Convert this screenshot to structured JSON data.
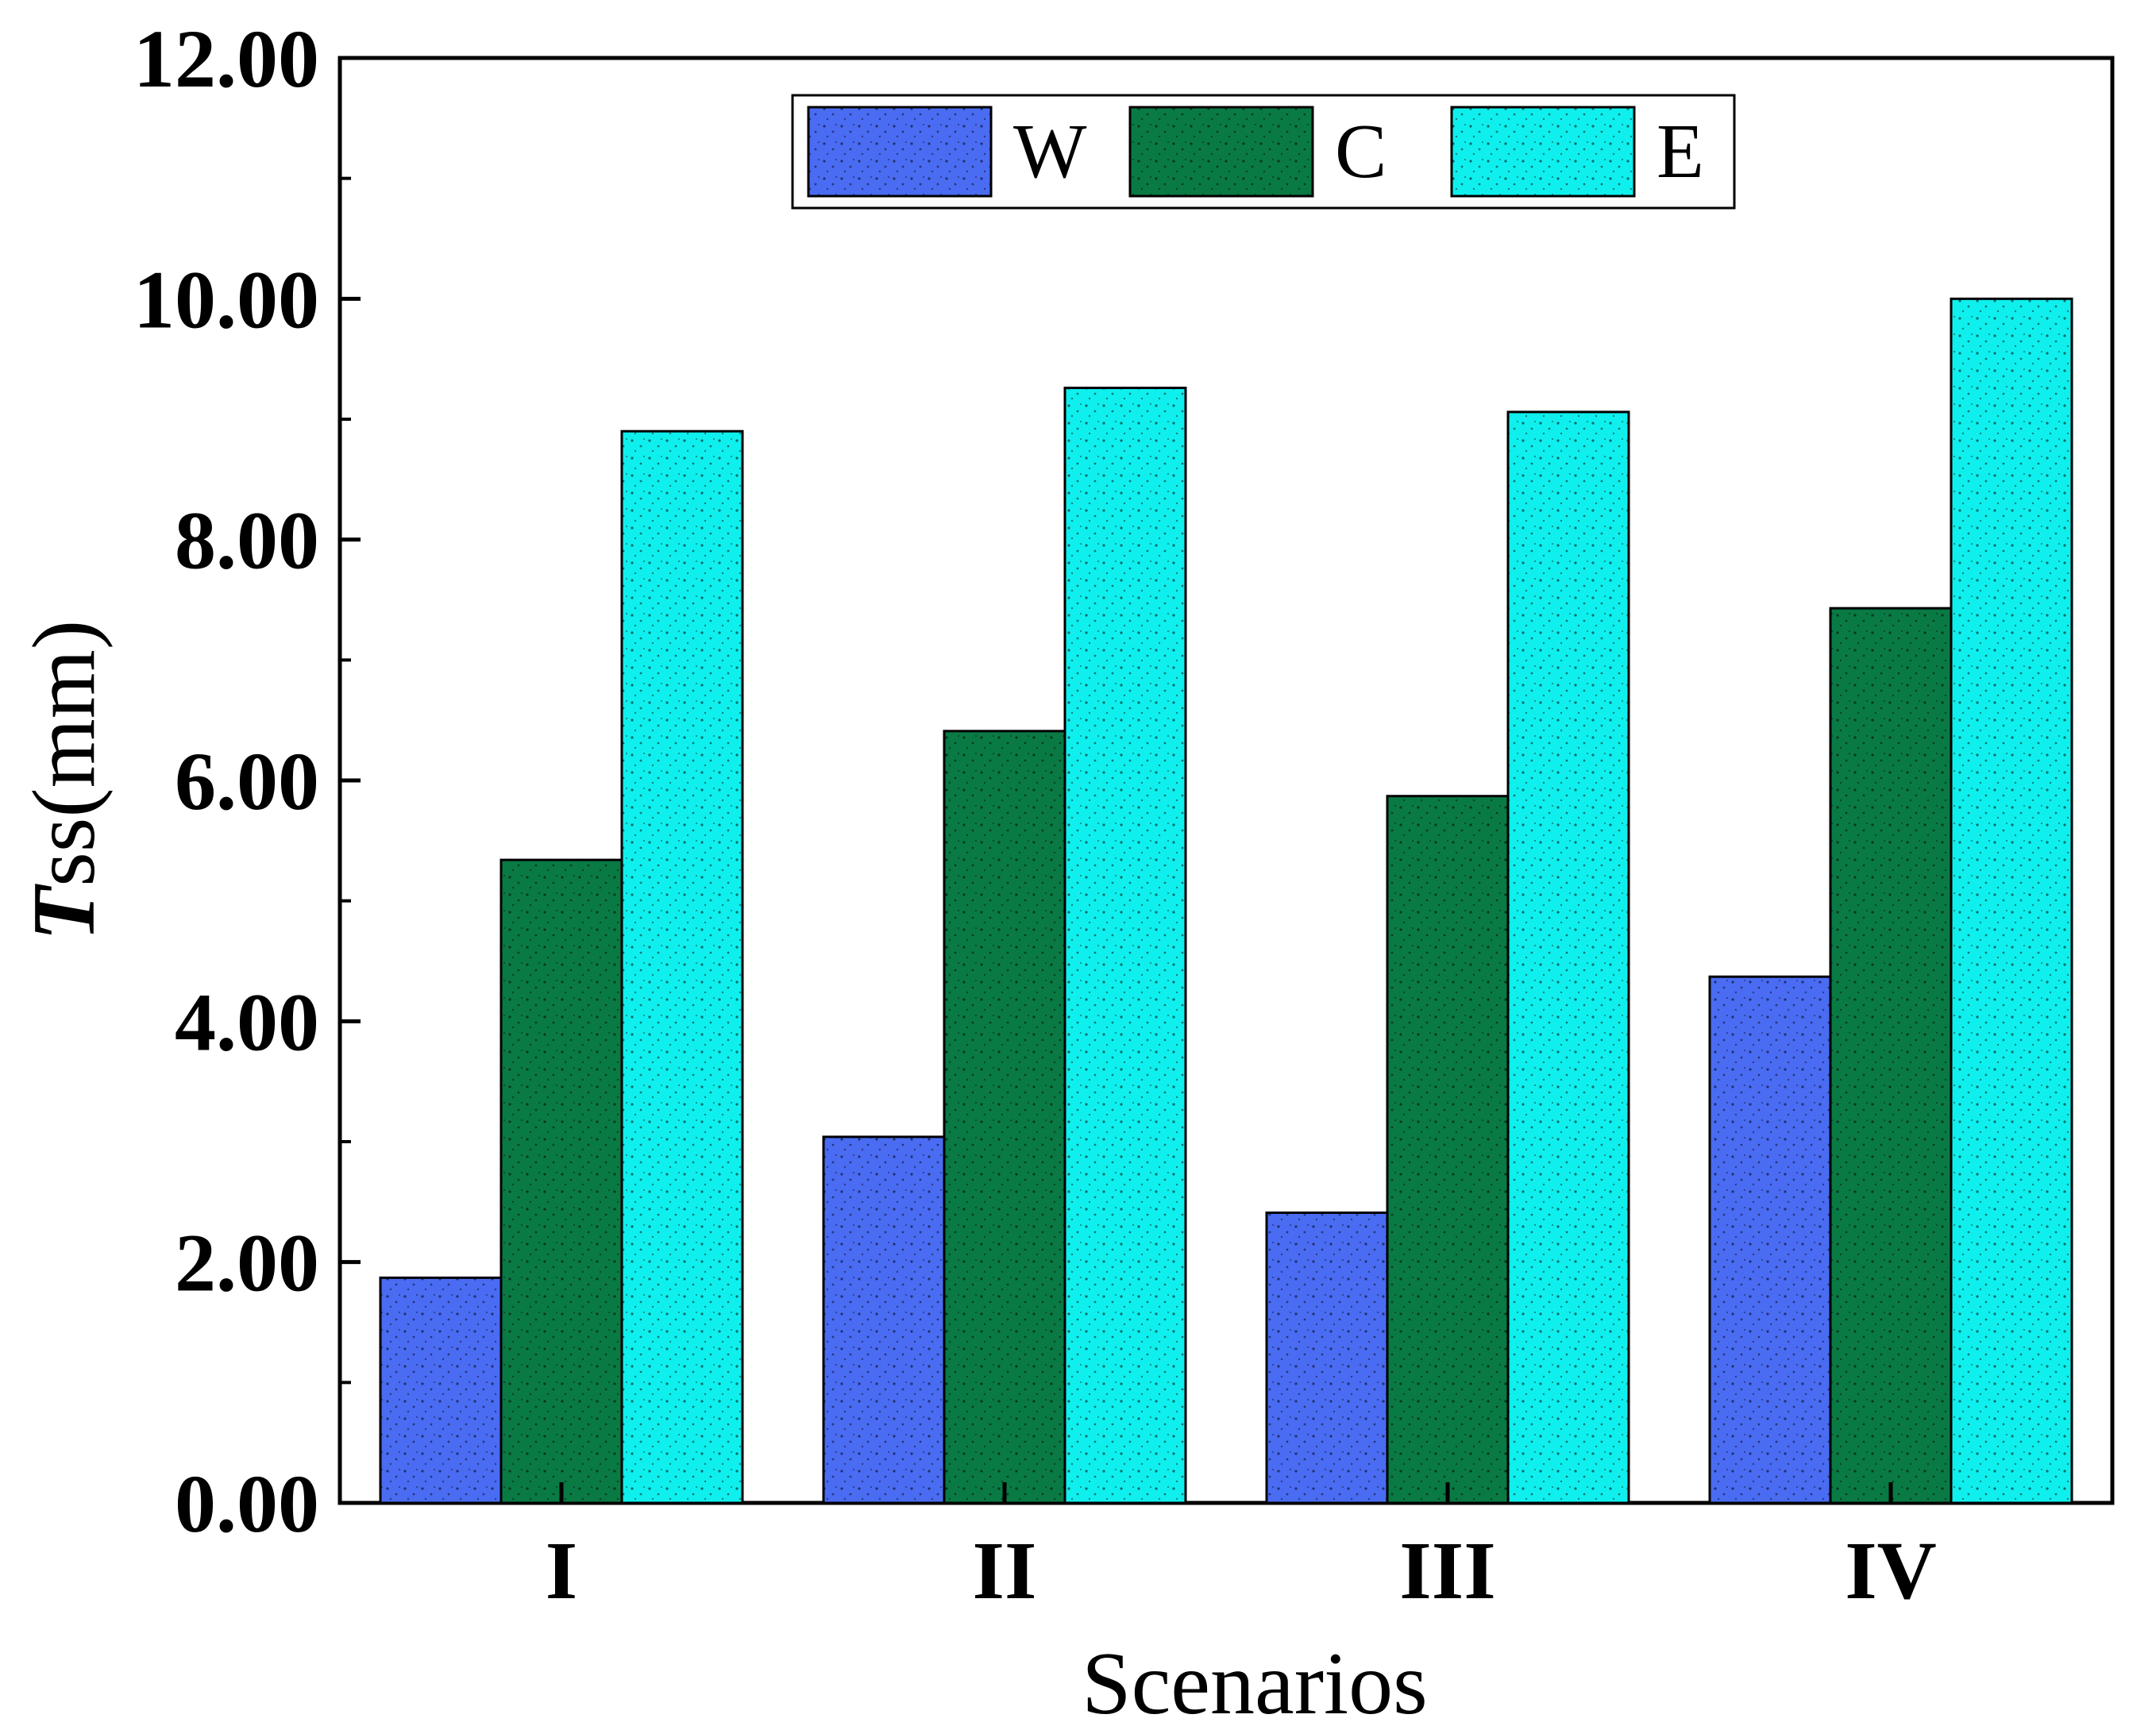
{
  "chart_data": {
    "type": "bar",
    "categories": [
      "I",
      "II",
      "III",
      "IV"
    ],
    "series": [
      {
        "name": "W",
        "values": [
          1.87,
          3.04,
          2.41,
          4.37
        ],
        "color": "#4a6cf2"
      },
      {
        "name": "C",
        "values": [
          5.34,
          6.41,
          5.87,
          7.43
        ],
        "color": "#0a7a45"
      },
      {
        "name": "E",
        "values": [
          8.9,
          9.26,
          9.06,
          10.0
        ],
        "color": "#0ff0ee"
      }
    ],
    "xlabel": "Scenarios",
    "ylabel_main": "T",
    "ylabel_rest": "ss(mm)",
    "ylim": [
      0,
      12
    ],
    "yticks": [
      "0.00",
      "2.00",
      "4.00",
      "6.00",
      "8.00",
      "10.00",
      "12.00"
    ],
    "legend_position": "top-center",
    "grid": false
  }
}
